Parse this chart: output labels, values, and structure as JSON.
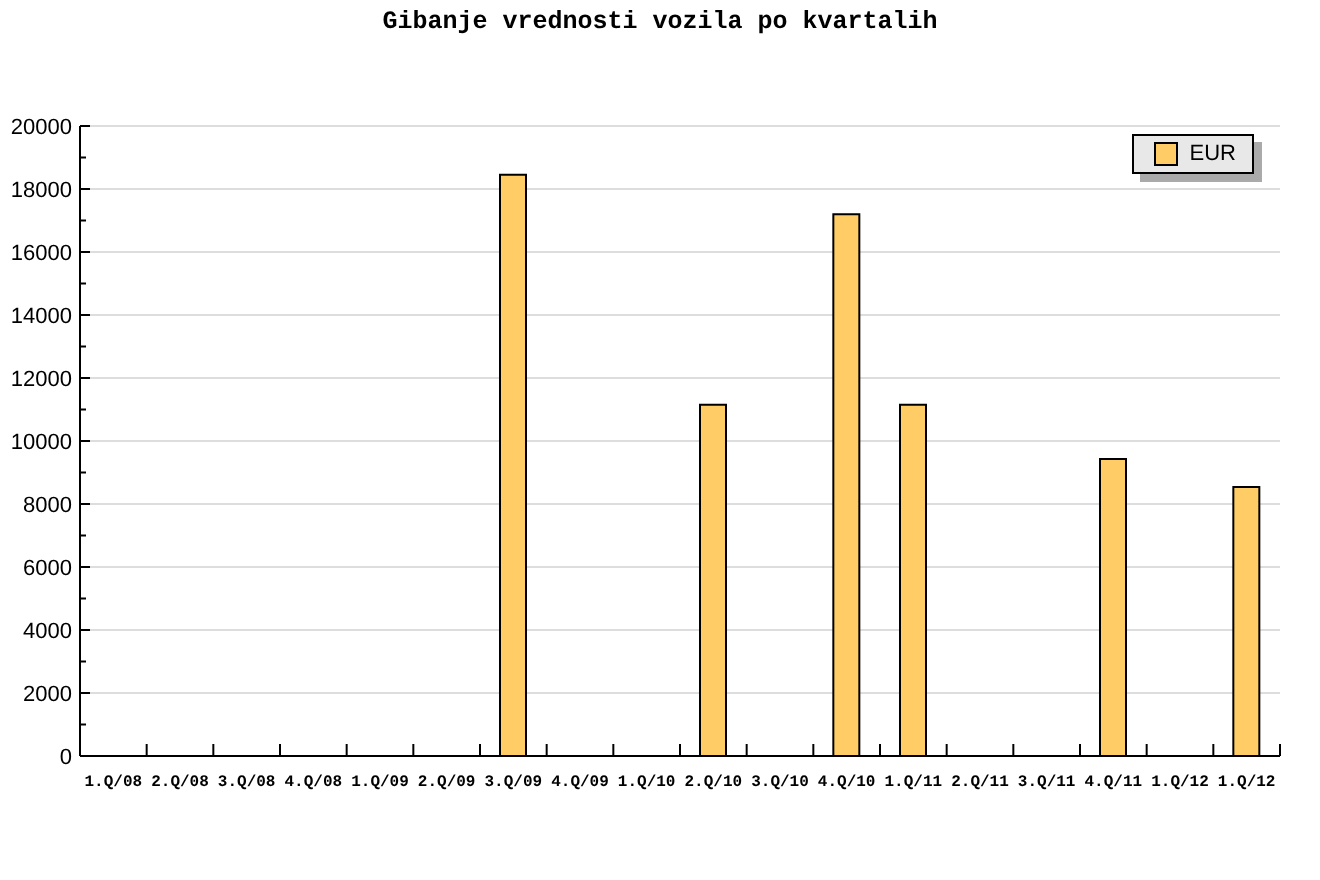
{
  "chart_data": {
    "type": "bar",
    "title": "Gibanje vrednosti vozila po kvartalih",
    "categories": [
      "1.Q/08",
      "2.Q/08",
      "3.Q/08",
      "4.Q/08",
      "1.Q/09",
      "2.Q/09",
      "3.Q/09",
      "4.Q/09",
      "1.Q/10",
      "2.Q/10",
      "3.Q/10",
      "4.Q/10",
      "1.Q/11",
      "2.Q/11",
      "3.Q/11",
      "4.Q/11",
      "1.Q/12",
      "1.Q/12"
    ],
    "series": [
      {
        "name": "EUR",
        "color": "#ffcc66",
        "values": [
          null,
          null,
          null,
          null,
          null,
          null,
          18450,
          null,
          null,
          11150,
          null,
          17200,
          11150,
          null,
          null,
          9430,
          null,
          8540
        ]
      }
    ],
    "ylim": [
      0,
      20000
    ],
    "yticks": [
      0,
      {
        "value": 1000,
        "label": null
      },
      2000,
      {
        "value": 3000,
        "label": null
      },
      4000,
      {
        "value": 5000,
        "label": null
      },
      6000,
      {
        "value": 7000,
        "label": null
      },
      8000,
      {
        "value": 9000,
        "label": null
      },
      10000,
      {
        "value": 11000,
        "label": null
      },
      12000,
      {
        "value": 13000,
        "label": null
      },
      14000,
      {
        "value": 15000,
        "label": null
      },
      16000,
      {
        "value": 17000,
        "label": null
      },
      18000,
      {
        "value": 19000,
        "label": null
      },
      20000
    ],
    "grid": "y",
    "legend": "top right"
  }
}
